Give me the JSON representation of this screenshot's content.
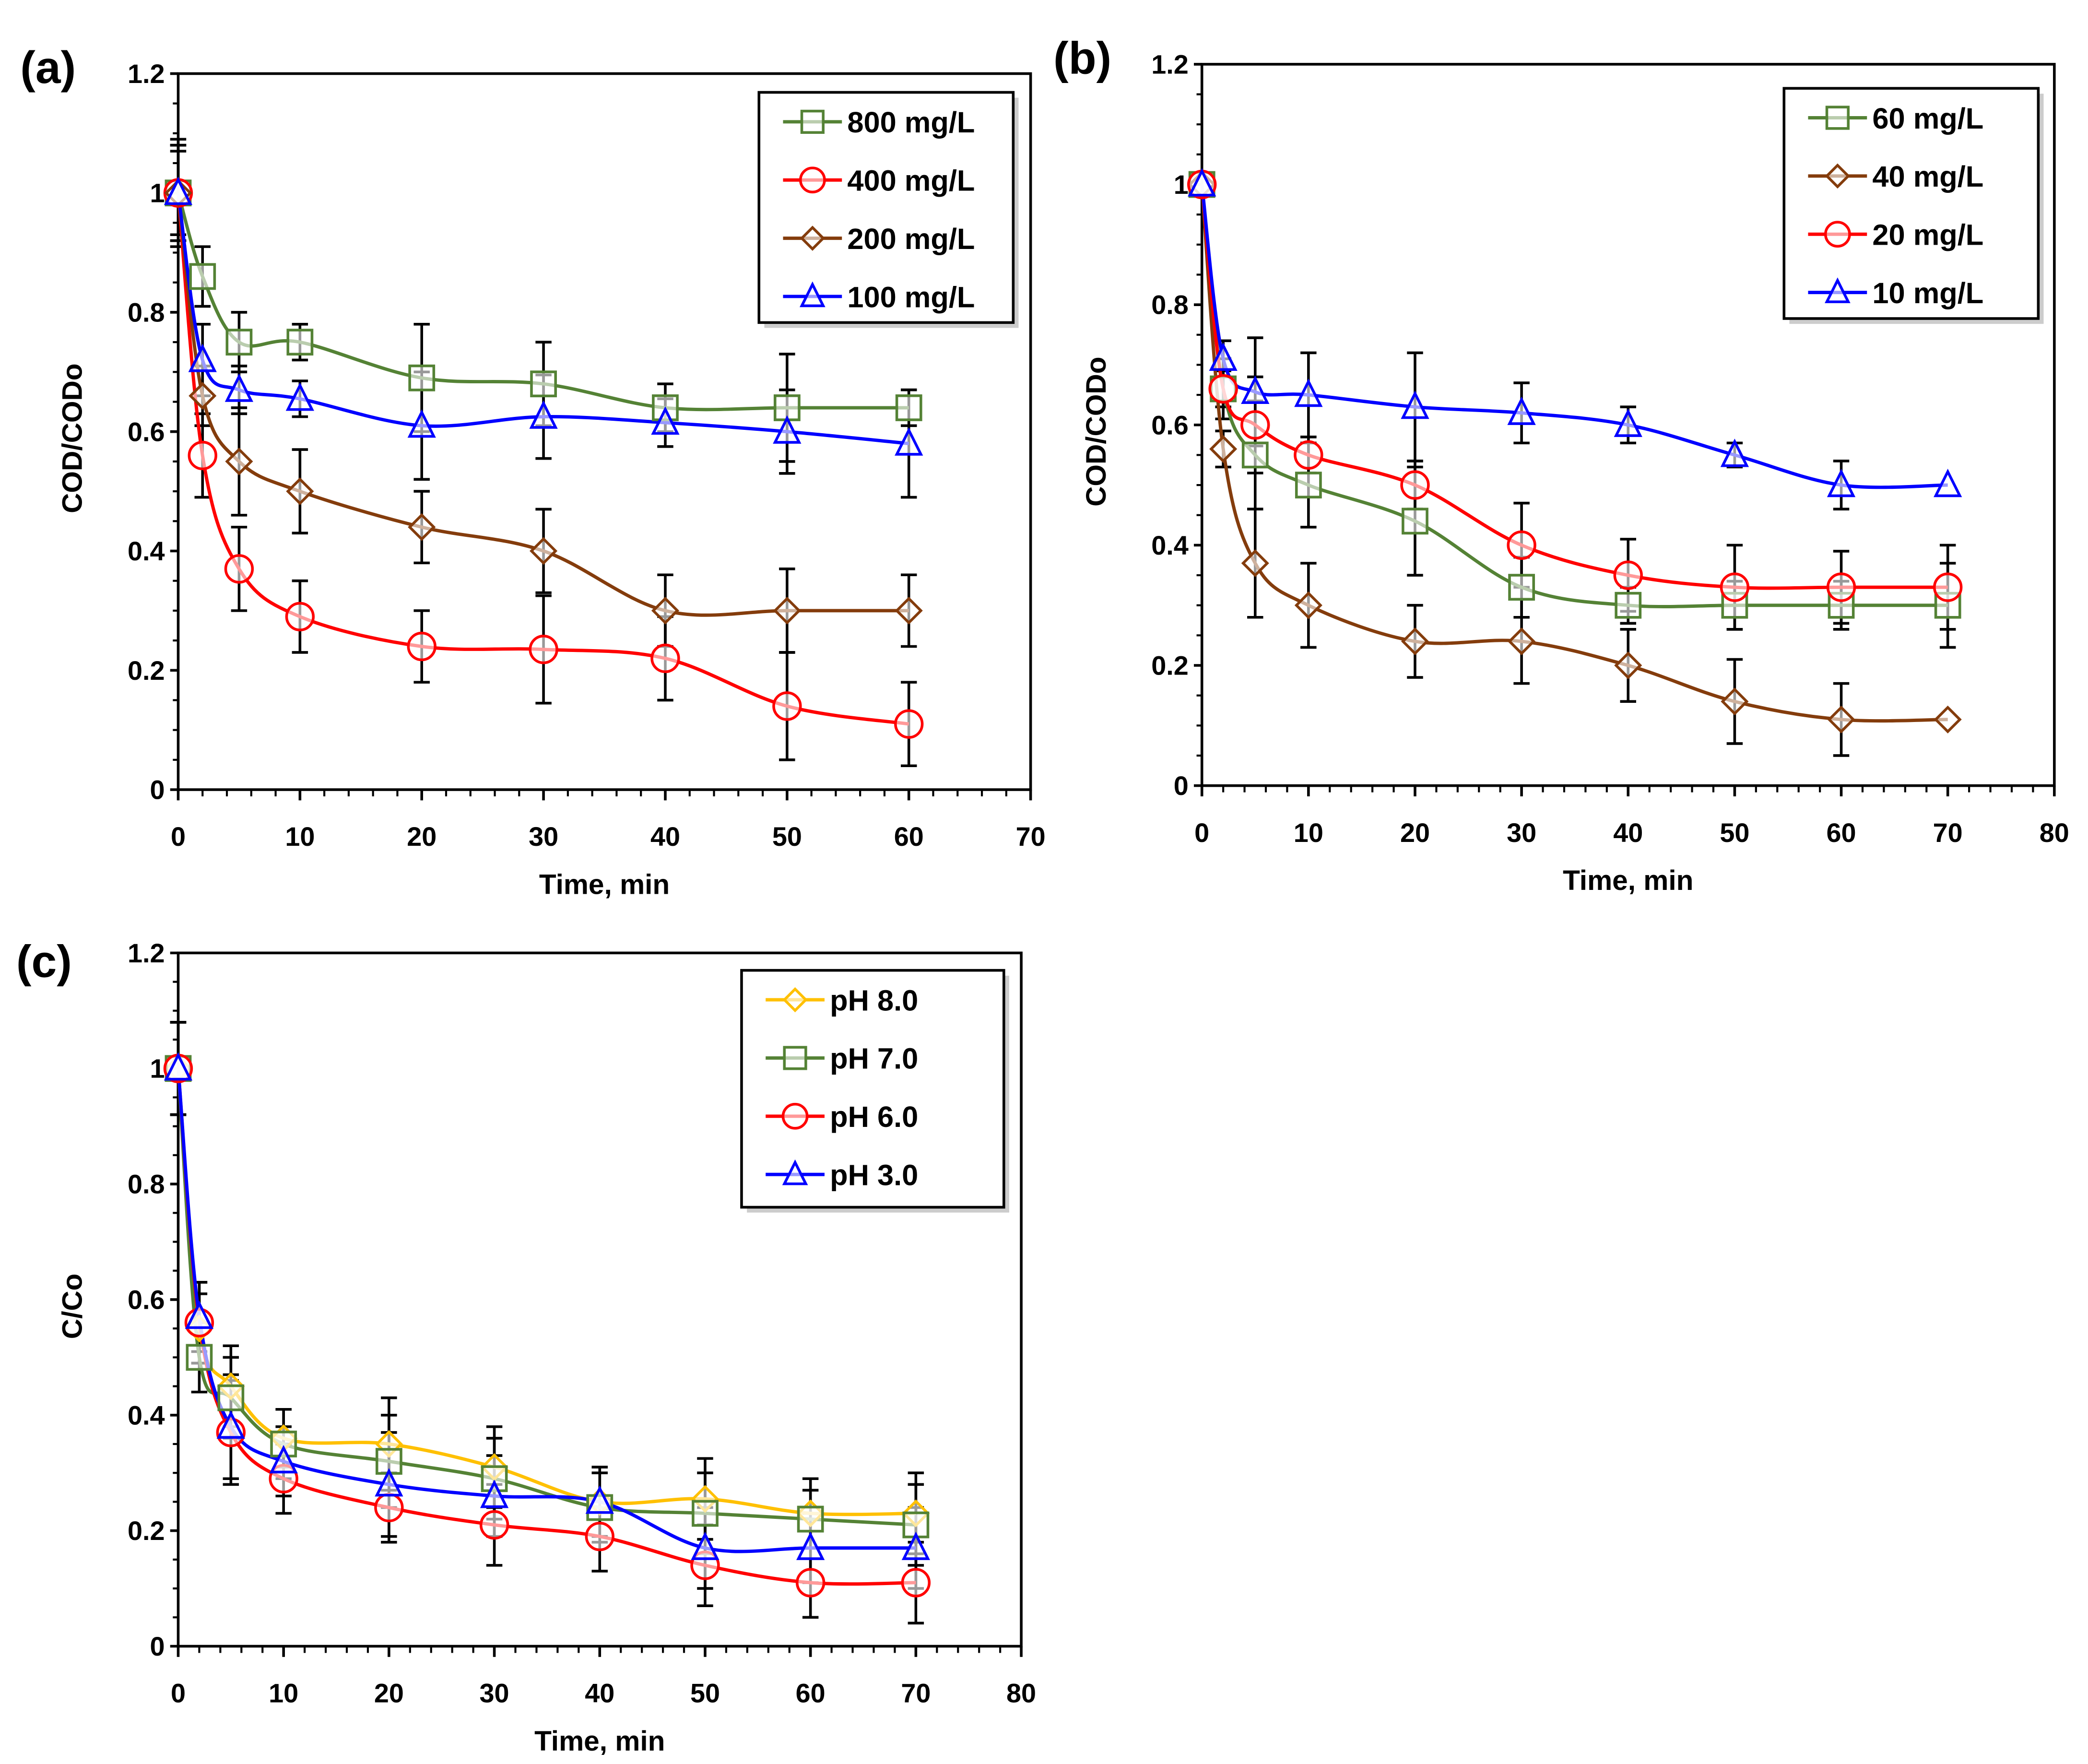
{
  "chart_data": [
    {
      "type": "line",
      "panel_label": "(a)",
      "xlabel": "Time, min",
      "ylabel": "COD/CODo",
      "xlim": [
        0,
        70
      ],
      "ylim": [
        0,
        1.2
      ],
      "xticks": [
        "0",
        "10",
        "20",
        "30",
        "40",
        "50",
        "60",
        "70"
      ],
      "yticks": [
        "0",
        "0.2",
        "0.4",
        "0.6",
        "0.8",
        "1",
        "1.2"
      ],
      "legend_position": "top-right",
      "x": [
        0,
        2,
        5,
        10,
        20,
        30,
        40,
        50,
        60
      ],
      "series": [
        {
          "name": "800 mg/L",
          "color": "#548235",
          "marker": "square",
          "values": [
            1,
            0.86,
            0.75,
            0.75,
            0.69,
            0.68,
            0.64,
            0.64,
            0.64
          ],
          "err": [
            0.09,
            0.05,
            0.05,
            0.03,
            0.09,
            0.07,
            0.04,
            0.09,
            0.03
          ]
        },
        {
          "name": "400 mg/L",
          "color": "#ff0000",
          "marker": "circle",
          "values": [
            1,
            0.56,
            0.37,
            0.29,
            0.24,
            0.235,
            0.22,
            0.14,
            0.11
          ],
          "err": [
            0.07,
            0.07,
            0.07,
            0.06,
            0.06,
            0.09,
            0.07,
            0.09,
            0.07
          ]
        },
        {
          "name": "200 mg/L",
          "color": "#843c0c",
          "marker": "diamond",
          "values": [
            1,
            0.66,
            0.55,
            0.5,
            0.44,
            0.4,
            0.3,
            0.3,
            0.3
          ],
          "err": [
            0.08,
            0.05,
            0.09,
            0.07,
            0.06,
            0.07,
            0.06,
            0.07,
            0.06
          ]
        },
        {
          "name": "100 mg/L",
          "color": "#0000ff",
          "marker": "triangle",
          "values": [
            1,
            0.72,
            0.67,
            0.655,
            0.61,
            0.625,
            0.615,
            0.6,
            0.58
          ],
          "err": [
            0.08,
            0.06,
            0.04,
            0.03,
            0.09,
            0.07,
            0.04,
            0.07,
            0.09
          ]
        }
      ]
    },
    {
      "type": "line",
      "panel_label": "(b)",
      "xlabel": "Time, min",
      "ylabel": "COD/CODo",
      "xlim": [
        0,
        80
      ],
      "ylim": [
        0,
        1.2
      ],
      "xticks": [
        "0",
        "10",
        "20",
        "30",
        "40",
        "50",
        "60",
        "70",
        "80"
      ],
      "yticks": [
        "0",
        "0.2",
        "0.4",
        "0.6",
        "0.8",
        "1",
        "1.2"
      ],
      "legend_position": "top-right",
      "x": [
        0,
        2,
        5,
        10,
        20,
        30,
        40,
        50,
        60,
        70
      ],
      "series": [
        {
          "name": "60 mg/L",
          "color": "#548235",
          "marker": "square",
          "values": [
            1,
            0.66,
            0.55,
            0.5,
            0.44,
            0.33,
            0.3,
            0.3,
            0.3,
            0.3
          ],
          "err": [
            0,
            0.05,
            0.09,
            0.07,
            0.09,
            0.05,
            0.03,
            0.04,
            0.04,
            0.07
          ]
        },
        {
          "name": "40 mg/L",
          "color": "#843c0c",
          "marker": "diamond",
          "values": [
            1,
            0.56,
            0.37,
            0.3,
            0.24,
            0.24,
            0.2,
            0.14,
            0.11,
            0.11
          ],
          "err": [
            0,
            0.03,
            0.09,
            0.07,
            0.06,
            0.07,
            0.06,
            0.07,
            0.06,
            0
          ]
        },
        {
          "name": "20 mg/L",
          "color": "#ff0000",
          "marker": "circle",
          "values": [
            1,
            0.66,
            0.6,
            0.55,
            0.5,
            0.4,
            0.35,
            0.33,
            0.33,
            0.33
          ],
          "err": [
            0,
            0.03,
            0.08,
            0.03,
            0.04,
            0.07,
            0.06,
            0.07,
            0.06,
            0.07
          ]
        },
        {
          "name": "10 mg/L",
          "color": "#0000ff",
          "marker": "triangle",
          "values": [
            1,
            0.71,
            0.655,
            0.65,
            0.63,
            0.62,
            0.6,
            0.55,
            0.5,
            0.5
          ],
          "err": [
            0,
            0.03,
            0.09,
            0.07,
            0.09,
            0.05,
            0.03,
            0.02,
            0.04,
            0
          ]
        }
      ]
    },
    {
      "type": "line",
      "panel_label": "(c)",
      "xlabel": "Time, min",
      "ylabel": "C/Co",
      "xlim": [
        0,
        80
      ],
      "ylim": [
        0,
        1.2
      ],
      "xticks": [
        "0",
        "10",
        "20",
        "30",
        "40",
        "50",
        "60",
        "70",
        "80"
      ],
      "yticks": [
        "0",
        "0.2",
        "0.4",
        "0.6",
        "0.8",
        "1",
        "1.2"
      ],
      "legend_position": "top-right",
      "x": [
        0,
        2,
        5,
        10,
        20,
        30,
        40,
        50,
        60,
        70
      ],
      "series": [
        {
          "name": "pH 8.0",
          "color": "#ffc000",
          "marker": "diamond",
          "values": [
            1,
            0.55,
            0.45,
            0.36,
            0.35,
            0.31,
            0.25,
            0.255,
            0.23,
            0.23
          ],
          "err": [
            0.08,
            0.06,
            0.07,
            0.05,
            0.08,
            0.07,
            0.06,
            0.07,
            0.06,
            0.07
          ]
        },
        {
          "name": "pH 7.0",
          "color": "#548235",
          "marker": "square",
          "values": [
            1,
            0.5,
            0.43,
            0.35,
            0.32,
            0.29,
            0.24,
            0.23,
            0.22,
            0.21
          ],
          "err": [
            0.08,
            0.06,
            0.07,
            0.06,
            0.08,
            0.07,
            0.06,
            0.07,
            0.05,
            0.07
          ]
        },
        {
          "name": "pH 6.0",
          "color": "#ff0000",
          "marker": "circle",
          "values": [
            1,
            0.56,
            0.37,
            0.29,
            0.24,
            0.21,
            0.19,
            0.14,
            0.11,
            0.11
          ],
          "err": [
            0.08,
            0.07,
            0.09,
            0.06,
            0.06,
            0.07,
            0.06,
            0.07,
            0.06,
            0.07
          ]
        },
        {
          "name": "pH 3.0",
          "color": "#0000ff",
          "marker": "triangle",
          "values": [
            1,
            0.57,
            0.38,
            0.32,
            0.28,
            0.26,
            0.25,
            0.17,
            0.17,
            0.17
          ],
          "err": [
            0.08,
            0.06,
            0.09,
            0.06,
            0.09,
            0.07,
            0.06,
            0.07,
            0.06,
            0.07
          ]
        }
      ]
    }
  ]
}
